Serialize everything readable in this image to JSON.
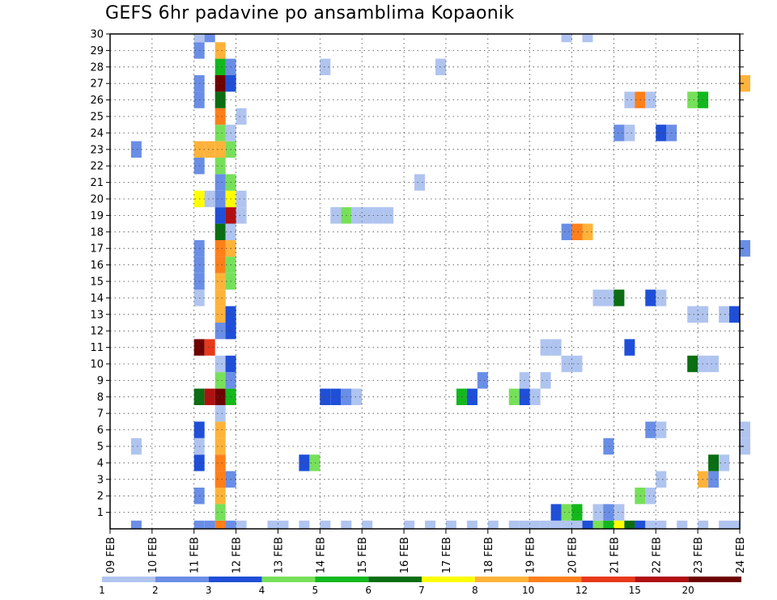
{
  "chart_data": {
    "type": "heatmap",
    "title": "GEFS 6hr padavine po ansamblima Kopaonik",
    "x_tick_labels": [
      "09 FEB",
      "10 FEB",
      "11 FEB",
      "12 FEB",
      "13 FEB",
      "14 FEB",
      "15 FEB",
      "16 FEB",
      "17 FEB",
      "18 FEB",
      "19 FEB",
      "20 FEB",
      "21 FEB",
      "22 FEB",
      "23 FEB",
      "24 FEB"
    ],
    "y_tick_labels": [
      "1",
      "2",
      "3",
      "4",
      "5",
      "6",
      "7",
      "8",
      "9",
      "10",
      "11",
      "12",
      "13",
      "14",
      "15",
      "16",
      "17",
      "18",
      "19",
      "20",
      "21",
      "22",
      "23",
      "24",
      "25",
      "26",
      "27",
      "28",
      "29",
      "30"
    ],
    "x_range_days": [
      9,
      24
    ],
    "y_range": [
      0,
      30
    ],
    "time_step_hours": 6,
    "grid": "dotted",
    "colorbar": {
      "labels": [
        "1",
        "2",
        "3",
        "4",
        "5",
        "6",
        "7",
        "8",
        "10",
        "12",
        "15",
        "20"
      ],
      "colors": [
        "#b0c4f0",
        "#6a8ee6",
        "#1f4fd8",
        "#77e05a",
        "#12b81c",
        "#0a6e12",
        "#ffff00",
        "#ffb33a",
        "#ff7f1a",
        "#e8381a",
        "#b21010",
        "#6e0000"
      ]
    },
    "cells": [
      [
        0,
        11,
        2
      ],
      [
        0,
        11.5,
        9
      ],
      [
        0,
        9.5,
        2
      ],
      [
        0,
        12,
        1
      ],
      [
        0,
        15,
        1
      ],
      [
        0,
        16,
        1
      ],
      [
        0,
        17,
        1
      ],
      [
        0,
        18,
        1
      ],
      [
        0,
        18.5,
        1
      ],
      [
        0,
        19,
        1
      ],
      [
        0,
        19.5,
        1
      ],
      [
        0,
        19.75,
        1
      ],
      [
        0,
        20.25,
        3
      ],
      [
        0,
        20.5,
        4
      ],
      [
        0,
        20.75,
        5
      ],
      [
        0,
        21,
        7
      ],
      [
        0,
        21.25,
        6
      ],
      [
        0,
        21.5,
        3
      ],
      [
        0,
        11.25,
        2
      ],
      [
        0,
        11.75,
        2
      ],
      [
        0,
        12.75,
        1
      ],
      [
        0,
        13,
        1
      ],
      [
        0,
        13.5,
        1
      ],
      [
        0,
        14,
        1
      ],
      [
        0,
        14.5,
        1
      ],
      [
        0,
        16.5,
        1
      ],
      [
        0,
        17.5,
        1
      ],
      [
        0,
        18.75,
        1
      ],
      [
        0,
        19.25,
        1
      ],
      [
        0,
        20,
        1
      ],
      [
        0,
        21.75,
        1
      ],
      [
        0,
        22,
        1
      ],
      [
        0,
        22.5,
        1
      ],
      [
        0,
        23,
        1
      ],
      [
        0,
        23.5,
        1
      ],
      [
        0,
        23.75,
        1
      ],
      [
        1,
        11.5,
        4
      ],
      [
        1,
        19.5,
        3
      ],
      [
        1,
        19.75,
        4
      ],
      [
        1,
        20,
        5
      ],
      [
        1,
        20.5,
        1
      ],
      [
        1,
        20.75,
        2
      ],
      [
        1,
        21,
        1
      ],
      [
        2,
        11,
        2
      ],
      [
        2,
        11.5,
        8
      ],
      [
        2,
        21.5,
        4
      ],
      [
        2,
        21.75,
        1
      ],
      [
        3,
        11.5,
        9
      ],
      [
        3,
        11.75,
        2
      ],
      [
        3,
        22,
        1
      ],
      [
        3,
        23,
        8
      ],
      [
        3,
        23.25,
        2
      ],
      [
        4,
        11,
        3
      ],
      [
        4,
        11.5,
        9
      ],
      [
        4,
        13.5,
        3
      ],
      [
        4,
        13.75,
        4
      ],
      [
        4,
        23.25,
        6
      ],
      [
        4,
        23.5,
        1
      ],
      [
        5,
        9.5,
        1
      ],
      [
        5,
        11,
        1
      ],
      [
        5,
        11.5,
        8
      ],
      [
        5,
        20.75,
        2
      ],
      [
        5,
        24,
        1
      ],
      [
        6,
        11,
        3
      ],
      [
        6,
        11.5,
        8
      ],
      [
        6,
        21.75,
        2
      ],
      [
        6,
        22,
        1
      ],
      [
        6,
        24,
        1
      ],
      [
        7,
        11.5,
        1
      ],
      [
        8,
        11,
        6
      ],
      [
        8,
        11.25,
        11
      ],
      [
        8,
        11.5,
        12
      ],
      [
        8,
        11.75,
        5
      ],
      [
        8,
        14,
        3
      ],
      [
        8,
        14.25,
        3
      ],
      [
        8,
        14.5,
        2
      ],
      [
        8,
        14.75,
        1
      ],
      [
        8,
        17.25,
        5
      ],
      [
        8,
        17.5,
        3
      ],
      [
        8,
        18.5,
        4
      ],
      [
        8,
        18.75,
        3
      ],
      [
        8,
        19,
        1
      ],
      [
        9,
        11.5,
        4
      ],
      [
        9,
        11.75,
        2
      ],
      [
        9,
        17.75,
        2
      ],
      [
        9,
        18.75,
        1
      ],
      [
        9,
        19.25,
        1
      ],
      [
        10,
        11.5,
        1
      ],
      [
        10,
        11.75,
        3
      ],
      [
        10,
        19.75,
        1
      ],
      [
        10,
        20,
        1
      ],
      [
        10,
        22.75,
        6
      ],
      [
        10,
        23,
        1
      ],
      [
        10,
        23.25,
        1
      ],
      [
        11,
        11,
        12
      ],
      [
        11,
        11.25,
        10
      ],
      [
        11,
        19.25,
        1
      ],
      [
        11,
        19.5,
        1
      ],
      [
        11,
        21.25,
        3
      ],
      [
        12,
        11.5,
        2
      ],
      [
        12,
        11.75,
        3
      ],
      [
        13,
        11.5,
        8
      ],
      [
        13,
        11.75,
        3
      ],
      [
        13,
        22.75,
        1
      ],
      [
        13,
        23,
        1
      ],
      [
        13,
        23.5,
        1
      ],
      [
        13,
        23.75,
        3
      ],
      [
        14,
        11,
        1
      ],
      [
        14,
        11.5,
        8
      ],
      [
        14,
        20.5,
        1
      ],
      [
        14,
        20.75,
        1
      ],
      [
        14,
        21,
        6
      ],
      [
        14,
        21.75,
        3
      ],
      [
        14,
        22,
        1
      ],
      [
        15,
        11,
        2
      ],
      [
        15,
        11.5,
        8
      ],
      [
        15,
        11.75,
        4
      ],
      [
        16,
        11,
        2
      ],
      [
        16,
        11.5,
        9
      ],
      [
        16,
        11.75,
        4
      ],
      [
        17,
        11,
        2
      ],
      [
        17,
        11.5,
        9
      ],
      [
        17,
        11.75,
        8
      ],
      [
        17,
        24,
        2
      ],
      [
        18,
        11.5,
        6
      ],
      [
        18,
        11.75,
        1
      ],
      [
        18,
        19.75,
        2
      ],
      [
        18,
        20,
        9
      ],
      [
        18,
        20.25,
        8
      ],
      [
        19,
        11.5,
        3
      ],
      [
        19,
        11.75,
        11
      ],
      [
        19,
        12,
        1
      ],
      [
        19,
        14.25,
        1
      ],
      [
        19,
        14.5,
        4
      ],
      [
        19,
        14.75,
        1
      ],
      [
        19,
        15,
        1
      ],
      [
        19,
        15.25,
        1
      ],
      [
        19,
        15.5,
        1
      ],
      [
        20,
        11,
        7
      ],
      [
        20,
        11.25,
        1
      ],
      [
        20,
        11.5,
        2
      ],
      [
        20,
        11.75,
        7
      ],
      [
        20,
        12,
        1
      ],
      [
        21,
        11.5,
        2
      ],
      [
        21,
        11.75,
        4
      ],
      [
        21,
        16.25,
        1
      ],
      [
        22,
        11,
        2
      ],
      [
        22,
        11.5,
        4
      ],
      [
        23,
        9.5,
        2
      ],
      [
        23,
        11,
        8
      ],
      [
        23,
        11.25,
        8
      ],
      [
        23,
        11.5,
        8
      ],
      [
        23,
        11.75,
        4
      ],
      [
        24,
        11.5,
        4
      ],
      [
        24,
        11.75,
        1
      ],
      [
        24,
        21,
        2
      ],
      [
        24,
        21.25,
        1
      ],
      [
        24,
        22,
        3
      ],
      [
        24,
        22.25,
        2
      ],
      [
        25,
        11.5,
        9
      ],
      [
        25,
        12,
        1
      ],
      [
        26,
        11,
        2
      ],
      [
        26,
        11.5,
        6
      ],
      [
        26,
        21.25,
        1
      ],
      [
        26,
        21.5,
        9
      ],
      [
        26,
        21.75,
        1
      ],
      [
        26,
        22.75,
        4
      ],
      [
        26,
        23,
        5
      ],
      [
        27,
        11,
        2
      ],
      [
        27,
        11.5,
        12
      ],
      [
        27,
        11.75,
        3
      ],
      [
        27,
        24,
        8
      ],
      [
        28,
        11.5,
        5
      ],
      [
        28,
        11.75,
        2
      ],
      [
        28,
        14,
        1
      ],
      [
        28,
        16.75,
        1
      ],
      [
        29,
        11,
        2
      ],
      [
        29,
        11.5,
        8
      ],
      [
        30,
        11,
        1
      ],
      [
        30,
        11.25,
        2
      ],
      [
        30,
        19.75,
        1
      ],
      [
        30,
        20.25,
        1
      ]
    ]
  }
}
